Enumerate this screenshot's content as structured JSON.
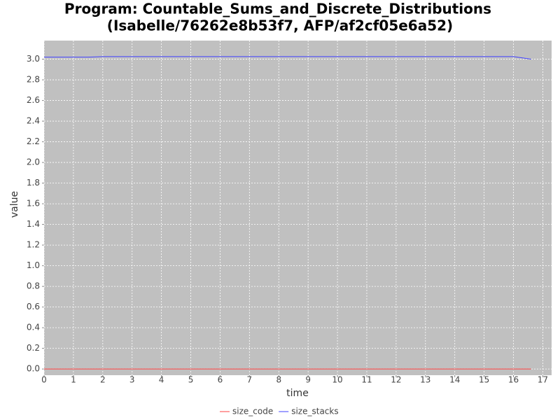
{
  "chart_data": {
    "type": "line",
    "title": "Program: Countable_Sums_and_Discrete_Distributions",
    "subtitle": "(Isabelle/76262e8b53f7, AFP/af2cf05e6a52)",
    "x_label": "time",
    "y_label": "value",
    "x": [
      0,
      1.5,
      2,
      16,
      16.6
    ],
    "series": [
      {
        "name": "size_code",
        "color": "#ff4040",
        "values": [
          0,
          0,
          0,
          0,
          0
        ]
      },
      {
        "name": "size_stacks",
        "color": "#4040ff",
        "values": [
          3.02,
          3.02,
          3.025,
          3.025,
          3.0
        ]
      }
    ],
    "xlim": [
      0,
      17.3
    ],
    "ylim": [
      -0.06,
      3.18
    ],
    "xticks": [
      0,
      1,
      2,
      3,
      4,
      5,
      6,
      7,
      8,
      9,
      10,
      11,
      12,
      13,
      14,
      15,
      16,
      17
    ],
    "yticks": [
      {
        "value": 0,
        "label": "0.0"
      },
      0.2,
      0.4,
      0.6,
      0.8,
      {
        "value": 1,
        "label": "1.0"
      },
      1.2,
      1.4,
      1.6,
      1.8,
      {
        "value": 2,
        "label": "2.0"
      },
      2.2,
      2.4,
      2.6,
      2.8,
      {
        "value": 3,
        "label": "3.0"
      }
    ],
    "grid": true,
    "legend": "bottom"
  }
}
